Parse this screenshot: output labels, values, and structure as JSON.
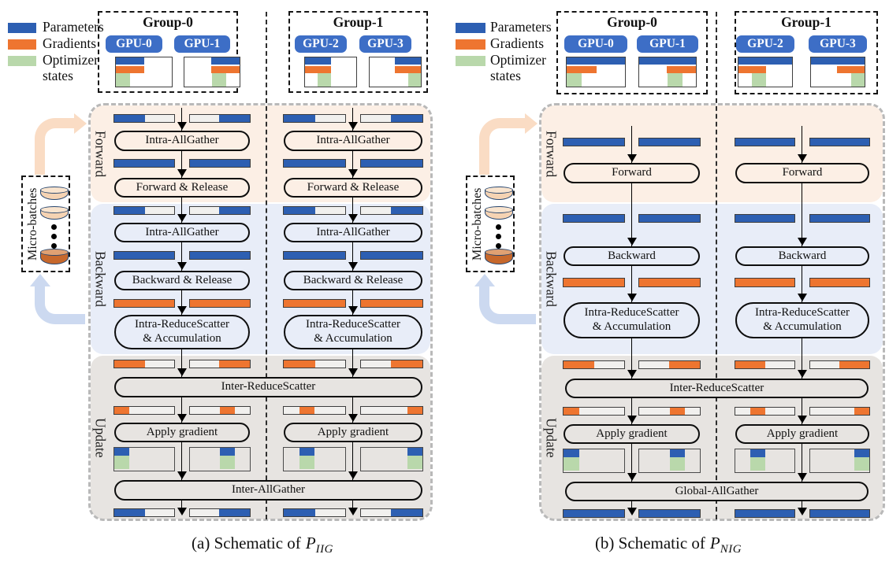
{
  "figure": {
    "legend": [
      {
        "name": "param",
        "label": "Parameters"
      },
      {
        "name": "grad",
        "label": "Gradients"
      },
      {
        "name": "opt",
        "label": "Optimizer states"
      }
    ],
    "colors": {
      "param": "#2d5fb2",
      "grad": "#ee7530",
      "opt": "#b9d8ab",
      "gpu_pill": "#3d6ec6",
      "band_forward": "#fcefe5",
      "band_backward": "#e8edf8",
      "band_update": "#e7e4e1",
      "bar_empty": "#f1f0ee",
      "arrow_forward": "#fadcc4",
      "arrow_backward": "#ccd9f0",
      "cyl_light": "#f5d3b3",
      "cyl_light_top": "#f9e4ce",
      "cyl_dark": "#c7682c",
      "cyl_dark_top": "#e0a173"
    },
    "micro_batches_label": "Micro-batches",
    "phases": [
      "Forward",
      "Backward",
      "Update"
    ],
    "panels": [
      {
        "id": "a",
        "caption": {
          "prefix": "(a) Schematic of",
          "var": "P",
          "sub": "IIG"
        },
        "mem_param_full": false,
        "groups": [
          {
            "label": "Group-0",
            "gpus": [
              {
                "label": "GPU-0",
                "half": "left",
                "quarter": 0
              },
              {
                "label": "GPU-1",
                "half": "right",
                "quarter": 2
              }
            ]
          },
          {
            "label": "Group-1",
            "gpus": [
              {
                "label": "GPU-2",
                "half": "left",
                "quarter": 1
              },
              {
                "label": "GPU-3",
                "half": "right",
                "quarter": 3
              }
            ]
          }
        ],
        "rows": [
          {
            "kind": "bars",
            "color": "param",
            "pattern": "half"
          },
          {
            "kind": "pill",
            "label": "Intra-AllGather"
          },
          {
            "kind": "bars",
            "color": "param",
            "pattern": "full"
          },
          {
            "kind": "pill",
            "label": "Forward & Release"
          },
          {
            "kind": "bars",
            "color": "param",
            "pattern": "half"
          },
          {
            "kind": "pill",
            "label": "Intra-AllGather"
          },
          {
            "kind": "bars",
            "color": "param",
            "pattern": "full"
          },
          {
            "kind": "pill",
            "label": "Backward & Release"
          },
          {
            "kind": "bars",
            "color": "grad",
            "pattern": "full"
          },
          {
            "kind": "pill",
            "label": "Intra-ReduceScatter",
            "label2": "& Accumulation"
          },
          {
            "kind": "bars",
            "color": "grad",
            "pattern": "half"
          },
          {
            "kind": "widepill",
            "label": "Inter-ReduceScatter"
          },
          {
            "kind": "bars",
            "color": "grad",
            "pattern": "quarter"
          },
          {
            "kind": "pill",
            "label": "Apply gradient"
          },
          {
            "kind": "optboxes"
          },
          {
            "kind": "widepill",
            "label": "Inter-AllGather"
          },
          {
            "kind": "bars",
            "color": "param",
            "pattern": "half"
          }
        ]
      },
      {
        "id": "b",
        "caption": {
          "prefix": "(b) Schematic of",
          "var": "P",
          "sub": "NIG"
        },
        "mem_param_full": true,
        "groups": [
          {
            "label": "Group-0",
            "gpus": [
              {
                "label": "GPU-0",
                "half": "left",
                "quarter": 0
              },
              {
                "label": "GPU-1",
                "half": "right",
                "quarter": 2
              }
            ]
          },
          {
            "label": "Group-1",
            "gpus": [
              {
                "label": "GPU-2",
                "half": "left",
                "quarter": 1
              },
              {
                "label": "GPU-3",
                "half": "right",
                "quarter": 3
              }
            ]
          }
        ],
        "rows": [
          {
            "kind": "bars",
            "color": "param",
            "pattern": "full"
          },
          {
            "kind": "pill",
            "label": "Forward"
          },
          {
            "kind": "bars",
            "color": "param",
            "pattern": "full"
          },
          {
            "kind": "pill",
            "label": "Backward"
          },
          {
            "kind": "bars",
            "color": "grad",
            "pattern": "full"
          },
          {
            "kind": "pill",
            "label": "Intra-ReduceScatter",
            "label2": "& Accumulation"
          },
          {
            "kind": "bars",
            "color": "grad",
            "pattern": "half"
          },
          {
            "kind": "widepill",
            "label": "Inter-ReduceScatter"
          },
          {
            "kind": "bars",
            "color": "grad",
            "pattern": "quarter"
          },
          {
            "kind": "pill",
            "label": "Apply gradient"
          },
          {
            "kind": "optboxes"
          },
          {
            "kind": "widepill",
            "label": "Global-AllGather"
          },
          {
            "kind": "bars",
            "color": "param",
            "pattern": "full"
          }
        ]
      }
    ]
  }
}
